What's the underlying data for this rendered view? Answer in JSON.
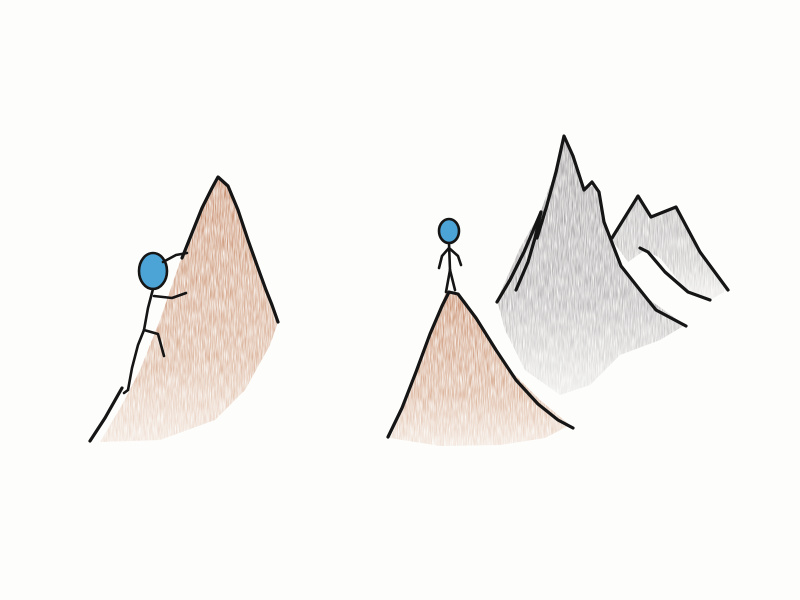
{
  "scene": {
    "colors": {
      "background": "#fdfdfb",
      "outline": "#151515",
      "brown_pencil": "#c98d6a",
      "gray_pencil": "#8e8a8c",
      "head_blue": "#4ba3d6"
    },
    "elements": [
      "left-mountain",
      "climbing-stick-figure",
      "small-summit-mountain",
      "standing-stick-figure",
      "tall-gray-mountain",
      "background-gray-peaks"
    ]
  }
}
